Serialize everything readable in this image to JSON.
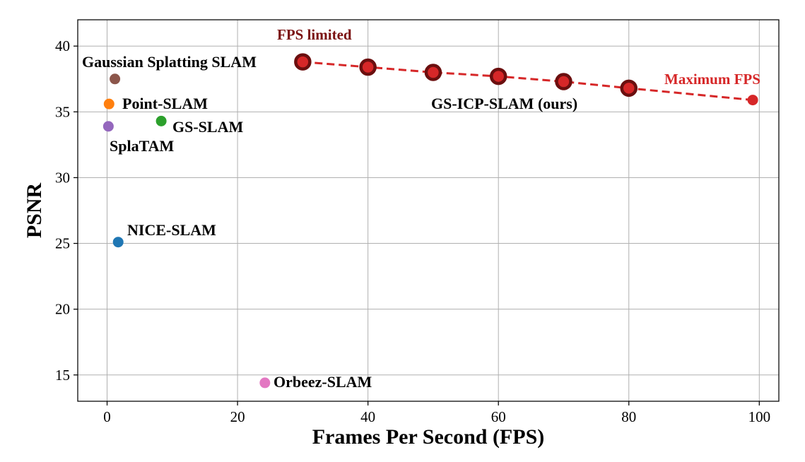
{
  "chart_data": {
    "type": "scatter",
    "title": "",
    "xlabel": "Frames Per Second (FPS)",
    "ylabel": "PSNR",
    "xlim": [
      -4.5,
      103
    ],
    "ylim": [
      13,
      42
    ],
    "xticks": [
      0,
      20,
      40,
      60,
      80,
      100
    ],
    "yticks": [
      15,
      20,
      25,
      30,
      35,
      40
    ],
    "grid": true,
    "points": [
      {
        "name": "Gaussian Splatting SLAM",
        "x": 1.2,
        "y": 37.5,
        "color": "#8c564b"
      },
      {
        "name": "Point-SLAM",
        "x": 0.3,
        "y": 35.6,
        "color": "#ff7f0e"
      },
      {
        "name": "GS-SLAM",
        "x": 8.3,
        "y": 34.3,
        "color": "#2ca02c"
      },
      {
        "name": "SplaTAM",
        "x": 0.2,
        "y": 33.9,
        "color": "#9467bd"
      },
      {
        "name": "NICE-SLAM",
        "x": 1.7,
        "y": 25.1,
        "color": "#1f77b4"
      },
      {
        "name": "Orbeez-SLAM",
        "x": 24.2,
        "y": 14.4,
        "color": "#e377c2"
      }
    ],
    "series": [
      {
        "name": "GS-ICP-SLAM (ours)",
        "color": "#d62728",
        "edge_color": "#6b0f0f",
        "x": [
          30,
          40,
          50,
          60,
          70,
          80,
          99
        ],
        "y": [
          38.8,
          38.4,
          38.0,
          37.7,
          37.3,
          36.8,
          35.9
        ]
      }
    ],
    "annotations": [
      {
        "text": "FPS limited",
        "color": "#7a1010"
      },
      {
        "text": "Maximum FPS",
        "color": "#d62728"
      }
    ]
  }
}
